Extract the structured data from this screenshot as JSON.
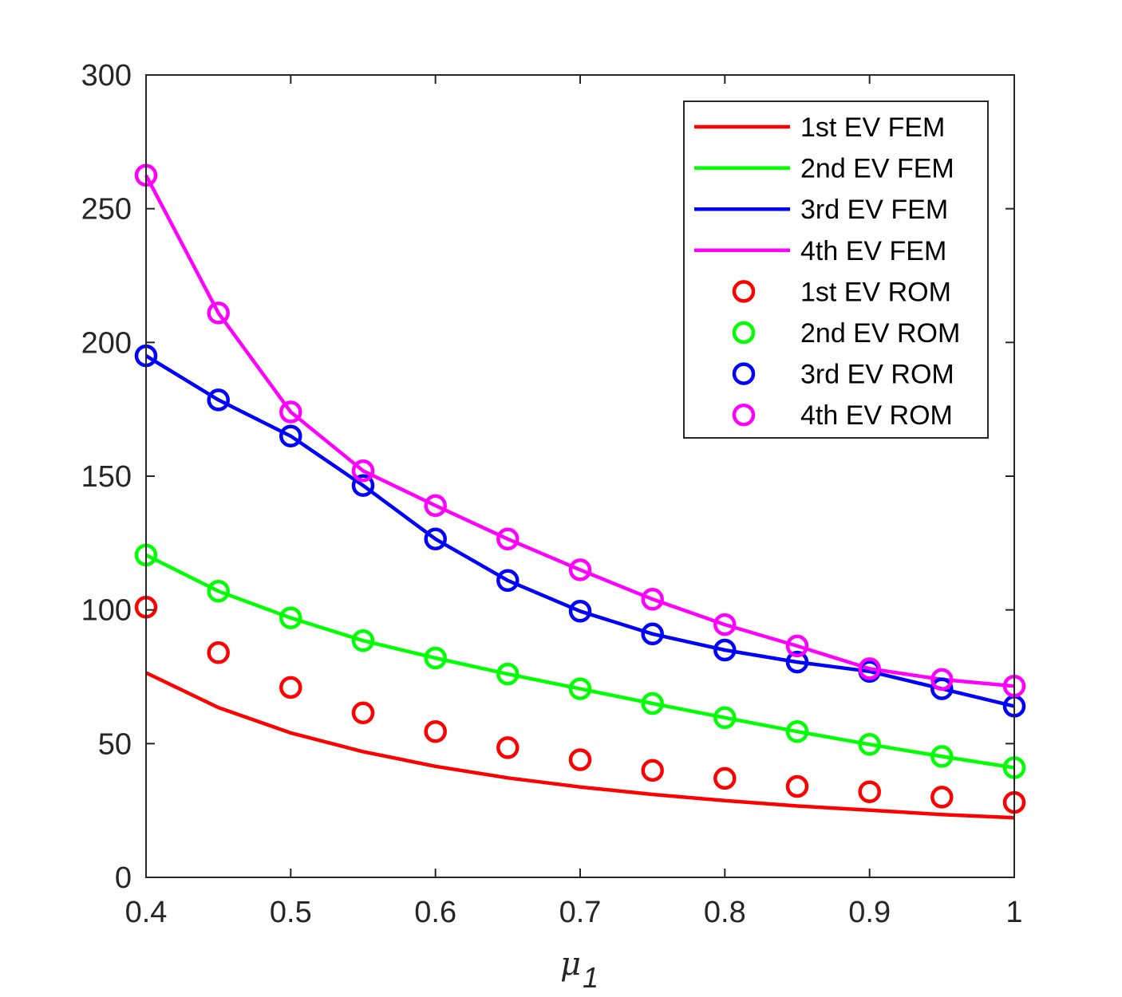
{
  "chart_data": {
    "type": "line",
    "title": "",
    "xlabel": "μ",
    "xlabel_subscript": "1",
    "ylabel": "",
    "xlim": [
      0.4,
      1
    ],
    "ylim": [
      0,
      300
    ],
    "xticks": [
      0.4,
      0.5,
      0.6,
      0.7,
      0.8,
      0.9,
      1
    ],
    "xtick_labels": [
      "0.4",
      "0.5",
      "0.6",
      "0.7",
      "0.8",
      "0.9",
      "1"
    ],
    "yticks": [
      0,
      50,
      100,
      150,
      200,
      250,
      300
    ],
    "ytick_labels": [
      "0",
      "50",
      "100",
      "150",
      "200",
      "250",
      "300"
    ],
    "grid": false,
    "legend_position": "top-right",
    "x": [
      0.4,
      0.45,
      0.5,
      0.55,
      0.6,
      0.65,
      0.7,
      0.75,
      0.8,
      0.85,
      0.9,
      0.95,
      1.0
    ],
    "series": [
      {
        "name": "1st EV FEM",
        "style": "line",
        "color": "#ff0000",
        "values": [
          76.5,
          63.5,
          54,
          47,
          41.5,
          37.2,
          33.8,
          31,
          28.7,
          26.7,
          25.1,
          23.5,
          22.3
        ]
      },
      {
        "name": "2nd EV FEM",
        "style": "line",
        "color": "#00ff00",
        "values": [
          120.5,
          107,
          97,
          88.5,
          82,
          76,
          70.5,
          65,
          59.7,
          54.5,
          49.7,
          45.2,
          41
        ]
      },
      {
        "name": "3rd EV FEM",
        "style": "line",
        "color": "#0000ff",
        "values": [
          195,
          178.5,
          165,
          146.5,
          126.5,
          111,
          99.5,
          91,
          85,
          80.5,
          77,
          70.5,
          64
        ]
      },
      {
        "name": "4th EV FEM",
        "style": "line",
        "color": "#ff00ff",
        "values": [
          262.5,
          211,
          174,
          152,
          139,
          126.5,
          115,
          104,
          94.5,
          86.5,
          78,
          74,
          71.5
        ]
      },
      {
        "name": "1st EV ROM",
        "style": "marker",
        "color": "#ff0000",
        "values": [
          101,
          84,
          71,
          61.5,
          54.5,
          48.5,
          44,
          40,
          37,
          34,
          32,
          30,
          28
        ]
      },
      {
        "name": "2nd EV ROM",
        "style": "marker",
        "color": "#00ff00",
        "values": [
          120.5,
          107,
          97,
          88.5,
          82,
          76,
          70.5,
          65,
          59.7,
          54.5,
          49.7,
          45.2,
          41
        ]
      },
      {
        "name": "3rd EV ROM",
        "style": "marker",
        "color": "#0000ff",
        "values": [
          195,
          178.5,
          165,
          146.5,
          126.5,
          111,
          99.5,
          91,
          85,
          80.5,
          77,
          70.5,
          64
        ]
      },
      {
        "name": "4th EV ROM",
        "style": "marker",
        "color": "#ff00ff",
        "values": [
          262.5,
          211,
          174,
          152,
          139,
          126.5,
          115,
          104,
          94.5,
          86.5,
          78,
          74,
          71.5
        ]
      }
    ]
  }
}
